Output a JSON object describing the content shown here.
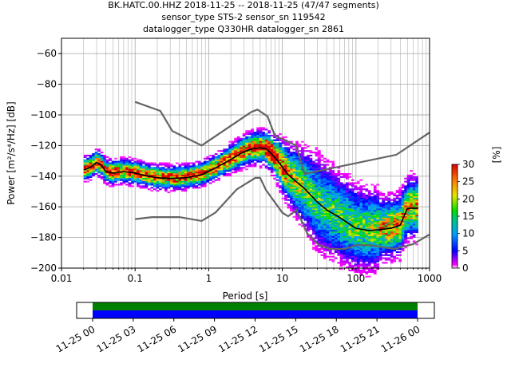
{
  "chart_data": {
    "type": "heatmap",
    "title_lines": [
      "BK.HATC.00.HHZ   2018-11-25 -- 2018-11-25  (47/47 segments)",
      "sensor_type STS-2 sensor_sn 119542",
      "datalogger_type Q330HR datalogger_sn 2861"
    ],
    "xlabel": "Period [s]",
    "ylabel": "Power [m²/s⁴/Hz] [dB]",
    "xscale": "log",
    "xlim": [
      0.01,
      1000
    ],
    "ylim": [
      -200,
      -50
    ],
    "x_ticks": [
      {
        "value": 0.01,
        "label": "0.01"
      },
      {
        "value": 0.1,
        "label": "0.1"
      },
      {
        "value": 1,
        "label": "1"
      },
      {
        "value": 10,
        "label": "10"
      },
      {
        "value": 100,
        "label": "100"
      },
      {
        "value": 1000,
        "label": "1000"
      }
    ],
    "y_ticks": [
      {
        "value": -60,
        "label": "−60"
      },
      {
        "value": -80,
        "label": "−80"
      },
      {
        "value": -100,
        "label": "−100"
      },
      {
        "value": -120,
        "label": "−120"
      },
      {
        "value": -140,
        "label": "−140"
      },
      {
        "value": -160,
        "label": "−160"
      },
      {
        "value": -180,
        "label": "−180"
      },
      {
        "value": -200,
        "label": "−200"
      }
    ],
    "grid": true,
    "colorbar": {
      "label": "[%]",
      "range": [
        0,
        30
      ],
      "ticks": [
        {
          "value": 0,
          "label": "0"
        },
        {
          "value": 5,
          "label": "5"
        },
        {
          "value": 10,
          "label": "10"
        },
        {
          "value": 15,
          "label": "15"
        },
        {
          "value": 20,
          "label": "20"
        },
        {
          "value": 25,
          "label": "25"
        },
        {
          "value": 30,
          "label": "30"
        }
      ]
    },
    "new_high_noise_model": [
      [
        0.1,
        -91.5
      ],
      [
        0.22,
        -97.4
      ],
      [
        0.32,
        -110.5
      ],
      [
        0.8,
        -120
      ],
      [
        3.8,
        -98
      ],
      [
        4.6,
        -96.5
      ],
      [
        6.3,
        -101
      ],
      [
        7.9,
        -113.5
      ],
      [
        15.4,
        -120
      ],
      [
        20,
        -138.5
      ],
      [
        354.8,
        -126
      ],
      [
        1000,
        -111.5
      ]
    ],
    "new_low_noise_model": [
      [
        0.1,
        -168
      ],
      [
        0.17,
        -166.7
      ],
      [
        0.4,
        -166.7
      ],
      [
        0.8,
        -169.2
      ],
      [
        1.24,
        -163.7
      ],
      [
        2.4,
        -148.6
      ],
      [
        4.3,
        -141.1
      ],
      [
        5,
        -141.1
      ],
      [
        6,
        -149
      ],
      [
        10,
        -163.8
      ],
      [
        12,
        -166.2
      ],
      [
        15.6,
        -162.1
      ],
      [
        21.9,
        -177.5
      ],
      [
        31.6,
        -185
      ],
      [
        45,
        -187.5
      ],
      [
        70,
        -187.5
      ],
      [
        101,
        -185
      ],
      [
        154,
        -185
      ],
      [
        328,
        -187.5
      ],
      [
        600,
        -184.4
      ],
      [
        1000,
        -178
      ]
    ],
    "median": [
      [
        0.02,
        -136
      ],
      [
        0.025,
        -134
      ],
      [
        0.03,
        -131
      ],
      [
        0.035,
        -133
      ],
      [
        0.04,
        -137
      ],
      [
        0.05,
        -138
      ],
      [
        0.07,
        -137
      ],
      [
        0.1,
        -138
      ],
      [
        0.15,
        -140
      ],
      [
        0.2,
        -141
      ],
      [
        0.3,
        -141.5
      ],
      [
        0.5,
        -141
      ],
      [
        0.8,
        -139
      ],
      [
        1.2,
        -135
      ],
      [
        2,
        -129
      ],
      [
        3,
        -124
      ],
      [
        4,
        -122
      ],
      [
        5,
        -121.5
      ],
      [
        6,
        -122
      ],
      [
        7,
        -125
      ],
      [
        8,
        -128
      ],
      [
        10,
        -134
      ],
      [
        12,
        -139
      ],
      [
        15,
        -143
      ],
      [
        20,
        -148
      ],
      [
        30,
        -157
      ],
      [
        40,
        -162
      ],
      [
        60,
        -167
      ],
      [
        80,
        -171
      ],
      [
        100,
        -174
      ],
      [
        150,
        -175.5
      ],
      [
        200,
        -175
      ],
      [
        300,
        -174
      ],
      [
        400,
        -172
      ],
      [
        500,
        -161
      ],
      [
        700,
        -161
      ]
    ],
    "density_percent_range": [
      0,
      30
    ]
  },
  "timeline": {
    "tick_labels": [
      "11-25 00",
      "11-25 03",
      "11-25 06",
      "11-25 09",
      "11-25 12",
      "11-25 15",
      "11-25 18",
      "11-25 21",
      "11-26 00"
    ],
    "coverage_colors": {
      "top": "#008000",
      "bottom": "#0000ff"
    }
  },
  "colors": {
    "noise_model": "#646464",
    "median": "#000000",
    "grid": "#b0b0b0"
  }
}
